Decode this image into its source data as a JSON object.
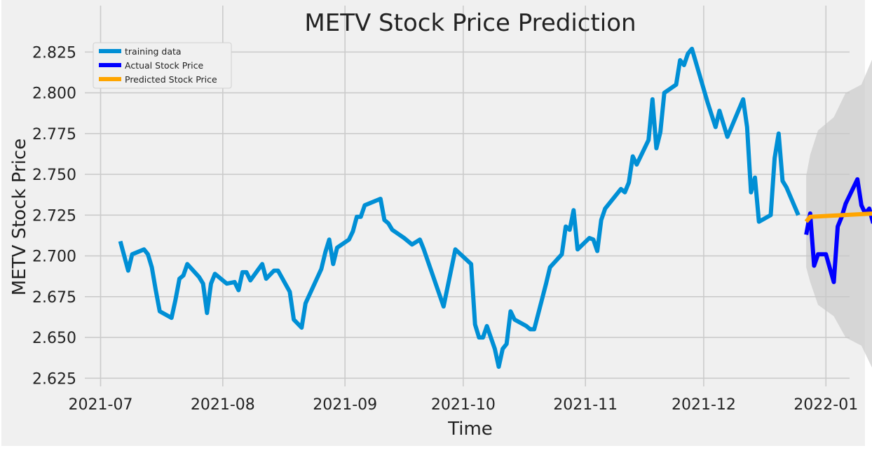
{
  "chart_data": {
    "type": "line",
    "title": "METV Stock Price Prediction",
    "xlabel": "Time",
    "ylabel": "METV Stock Price",
    "ylim": [
      2.62,
      2.832
    ],
    "xlim": [
      "2021-06-27",
      "2022-01-07"
    ],
    "x_ticks": [
      "2021-07-01",
      "2021-08-01",
      "2021-09-01",
      "2021-10-01",
      "2021-11-01",
      "2021-12-01",
      "2022-01-01"
    ],
    "x_tick_labels": [
      "2021-07",
      "2021-08",
      "2021-09",
      "2021-10",
      "2021-11",
      "2021-12",
      "2022-01"
    ],
    "y_ticks": [
      2.625,
      2.65,
      2.675,
      2.7,
      2.725,
      2.75,
      2.775,
      2.8,
      2.825
    ],
    "y_tick_labels": [
      "2.625",
      "2.650",
      "2.675",
      "2.700",
      "2.725",
      "2.750",
      "2.775",
      "2.800",
      "2.825"
    ],
    "grid": true,
    "legend_position": "top-left",
    "colors": {
      "background": "#f0f0f0",
      "grid": "#cbcbcb",
      "training": "#008fd5",
      "actual": "#0000ff",
      "predicted": "#ffa500",
      "confidence": "#c8c8c8"
    },
    "series": [
      {
        "name": "training data",
        "color": "#008fd5",
        "points": [
          [
            "2021-07-06",
            2.709
          ],
          [
            "2021-07-08",
            2.691
          ],
          [
            "2021-07-09",
            2.701
          ],
          [
            "2021-07-12",
            2.704
          ],
          [
            "2021-07-13",
            2.701
          ],
          [
            "2021-07-14",
            2.693
          ],
          [
            "2021-07-15",
            2.679
          ],
          [
            "2021-07-16",
            2.666
          ],
          [
            "2021-07-19",
            2.662
          ],
          [
            "2021-07-20",
            2.673
          ],
          [
            "2021-07-21",
            2.686
          ],
          [
            "2021-07-22",
            2.688
          ],
          [
            "2021-07-23",
            2.695
          ],
          [
            "2021-07-26",
            2.687
          ],
          [
            "2021-07-27",
            2.683
          ],
          [
            "2021-07-28",
            2.665
          ],
          [
            "2021-07-29",
            2.683
          ],
          [
            "2021-07-30",
            2.689
          ],
          [
            "2021-08-02",
            2.683
          ],
          [
            "2021-08-04",
            2.684
          ],
          [
            "2021-08-05",
            2.679
          ],
          [
            "2021-08-06",
            2.69
          ],
          [
            "2021-08-07",
            2.69
          ],
          [
            "2021-08-08",
            2.685
          ],
          [
            "2021-08-11",
            2.695
          ],
          [
            "2021-08-12",
            2.686
          ],
          [
            "2021-08-14",
            2.691
          ],
          [
            "2021-08-15",
            2.691
          ],
          [
            "2021-08-18",
            2.678
          ],
          [
            "2021-08-19",
            2.661
          ],
          [
            "2021-08-21",
            2.656
          ],
          [
            "2021-08-22",
            2.671
          ],
          [
            "2021-08-26",
            2.692
          ],
          [
            "2021-08-27",
            2.702
          ],
          [
            "2021-08-28",
            2.71
          ],
          [
            "2021-08-29",
            2.695
          ],
          [
            "2021-08-30",
            2.705
          ],
          [
            "2021-09-02",
            2.71
          ],
          [
            "2021-09-03",
            2.715
          ],
          [
            "2021-09-04",
            2.724
          ],
          [
            "2021-09-05",
            2.724
          ],
          [
            "2021-09-06",
            2.731
          ],
          [
            "2021-09-10",
            2.735
          ],
          [
            "2021-09-11",
            2.722
          ],
          [
            "2021-09-12",
            2.72
          ],
          [
            "2021-09-13",
            2.716
          ],
          [
            "2021-09-16",
            2.711
          ],
          [
            "2021-09-18",
            2.707
          ],
          [
            "2021-09-20",
            2.71
          ],
          [
            "2021-09-21",
            2.704
          ],
          [
            "2021-09-26",
            2.669
          ],
          [
            "2021-09-29",
            2.704
          ],
          [
            "2021-10-03",
            2.695
          ],
          [
            "2021-10-04",
            2.658
          ],
          [
            "2021-10-05",
            2.65
          ],
          [
            "2021-10-06",
            2.65
          ],
          [
            "2021-10-07",
            2.657
          ],
          [
            "2021-10-09",
            2.643
          ],
          [
            "2021-10-10",
            2.632
          ],
          [
            "2021-10-11",
            2.643
          ],
          [
            "2021-10-12",
            2.646
          ],
          [
            "2021-10-13",
            2.666
          ],
          [
            "2021-10-14",
            2.661
          ],
          [
            "2021-10-17",
            2.657
          ],
          [
            "2021-10-18",
            2.655
          ],
          [
            "2021-10-19",
            2.655
          ],
          [
            "2021-10-22",
            2.683
          ],
          [
            "2021-10-23",
            2.693
          ],
          [
            "2021-10-26",
            2.701
          ],
          [
            "2021-10-27",
            2.718
          ],
          [
            "2021-10-28",
            2.716
          ],
          [
            "2021-10-29",
            2.728
          ],
          [
            "2021-10-30",
            2.704
          ],
          [
            "2021-11-02",
            2.711
          ],
          [
            "2021-11-03",
            2.71
          ],
          [
            "2021-11-04",
            2.703
          ],
          [
            "2021-11-05",
            2.722
          ],
          [
            "2021-11-06",
            2.729
          ],
          [
            "2021-11-10",
            2.741
          ],
          [
            "2021-11-11",
            2.739
          ],
          [
            "2021-11-12",
            2.745
          ],
          [
            "2021-11-13",
            2.761
          ],
          [
            "2021-11-14",
            2.756
          ],
          [
            "2021-11-17",
            2.771
          ],
          [
            "2021-11-18",
            2.796
          ],
          [
            "2021-11-19",
            2.766
          ],
          [
            "2021-11-20",
            2.776
          ],
          [
            "2021-11-21",
            2.8
          ],
          [
            "2021-11-24",
            2.805
          ],
          [
            "2021-11-25",
            2.82
          ],
          [
            "2021-11-26",
            2.817
          ],
          [
            "2021-11-27",
            2.824
          ],
          [
            "2021-11-28",
            2.827
          ],
          [
            "2021-12-02",
            2.794
          ],
          [
            "2021-12-04",
            2.779
          ],
          [
            "2021-12-05",
            2.789
          ],
          [
            "2021-12-07",
            2.773
          ],
          [
            "2021-12-11",
            2.796
          ],
          [
            "2021-12-12",
            2.779
          ],
          [
            "2021-12-13",
            2.739
          ],
          [
            "2021-12-14",
            2.748
          ],
          [
            "2021-12-15",
            2.721
          ],
          [
            "2021-12-18",
            2.725
          ],
          [
            "2021-12-19",
            2.76
          ],
          [
            "2021-12-20",
            2.775
          ],
          [
            "2021-12-21",
            2.746
          ],
          [
            "2021-12-22",
            2.742
          ],
          [
            "2021-12-25",
            2.725
          ]
        ]
      },
      {
        "name": "Actual Stock Price",
        "color": "#0000ff",
        "points": [
          [
            "2021-12-27",
            2.713
          ],
          [
            "2021-12-28",
            2.726
          ],
          [
            "2021-12-29",
            2.694
          ],
          [
            "2021-12-30",
            2.701
          ],
          [
            "2022-01-01",
            2.701
          ],
          [
            "2022-01-03",
            2.684
          ],
          [
            "2022-01-04",
            2.718
          ],
          [
            "2022-01-05",
            2.724
          ],
          [
            "2022-01-06",
            2.732
          ],
          [
            "2022-01-09",
            2.747
          ],
          [
            "2022-01-10",
            2.731
          ],
          [
            "2022-01-11",
            2.726
          ],
          [
            "2022-01-12",
            2.729
          ],
          [
            "2022-01-13",
            2.72
          ]
        ]
      },
      {
        "name": "Predicted Stock Price",
        "color": "#ffa500",
        "points": [
          [
            "2021-12-27",
            2.721
          ],
          [
            "2021-12-28",
            2.724
          ],
          [
            "2022-01-13",
            2.726
          ]
        ]
      }
    ],
    "confidence_band": {
      "points": [
        [
          "2021-12-27",
          2.749,
          2.693
        ],
        [
          "2021-12-28",
          2.762,
          2.684
        ],
        [
          "2021-12-30",
          2.777,
          2.67
        ],
        [
          "2022-01-03",
          2.785,
          2.663
        ],
        [
          "2022-01-06",
          2.8,
          2.65
        ],
        [
          "2022-01-10",
          2.805,
          2.645
        ],
        [
          "2022-01-13",
          2.822,
          2.63
        ]
      ]
    }
  }
}
